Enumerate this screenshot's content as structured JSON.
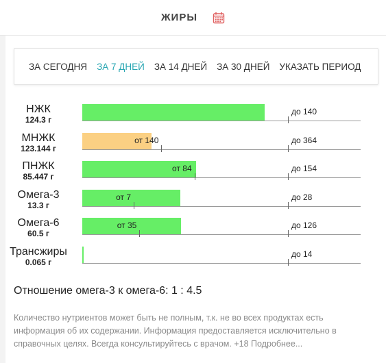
{
  "header": {
    "title": "ЖИРЫ",
    "icon": "calendar-icon",
    "icon_color": "#e06060"
  },
  "period_tabs": [
    {
      "label": "ЗА СЕГОДНЯ",
      "active": false
    },
    {
      "label": "ЗА 7 ДНЕЙ",
      "active": true
    },
    {
      "label": "ЗА 14 ДНЕЙ",
      "active": false
    },
    {
      "label": "ЗА 30 ДНЕЙ",
      "active": false
    },
    {
      "label": "УКАЗАТЬ ПЕРИОД",
      "active": false
    }
  ],
  "colors": {
    "accent": "#2aa7b3",
    "bar_ok": "#66ee66",
    "bar_low": "#fbd083"
  },
  "chart_data": {
    "type": "bar",
    "orientation": "horizontal",
    "grid": false,
    "rows": [
      {
        "name": "НЖК",
        "value": 124.3,
        "value_label": "124.3 г",
        "status": "ok",
        "min": null,
        "min_label": "",
        "max": 140,
        "max_label": "до 140"
      },
      {
        "name": "МНЖК",
        "value": 123.144,
        "value_label": "123.144 г",
        "status": "low",
        "min": 140,
        "min_label": "от 140",
        "max": 364,
        "max_label": "до 364"
      },
      {
        "name": "ПНЖК",
        "value": 85.447,
        "value_label": "85.447 г",
        "status": "ok",
        "min": 84,
        "min_label": "от 84",
        "max": 154,
        "max_label": "до 154"
      },
      {
        "name": "Омега-3",
        "value": 13.3,
        "value_label": "13.3 г",
        "status": "ok",
        "min": 7,
        "min_label": "от 7",
        "max": 28,
        "max_label": "до 28"
      },
      {
        "name": "Омега-6",
        "value": 60.5,
        "value_label": "60.5 г",
        "status": "ok",
        "min": 35,
        "min_label": "от 35",
        "max": 126,
        "max_label": "до 126"
      },
      {
        "name": "Трансжиры",
        "value": 0.065,
        "value_label": "0.065 г",
        "status": "ok",
        "min": null,
        "min_label": "",
        "max": 14,
        "max_label": "до 14"
      }
    ]
  },
  "ratio_text": "Отношение омега-3 к омега-6: 1 : 4.5",
  "disclaimer": "Количество нутриентов может быть не полным, т.к. не во всех продуктах есть информация об их содержании. Информация предоставляется исключительно в справочных целях. Всегда консультируйтесь с врачом. +18 Подробнее..."
}
